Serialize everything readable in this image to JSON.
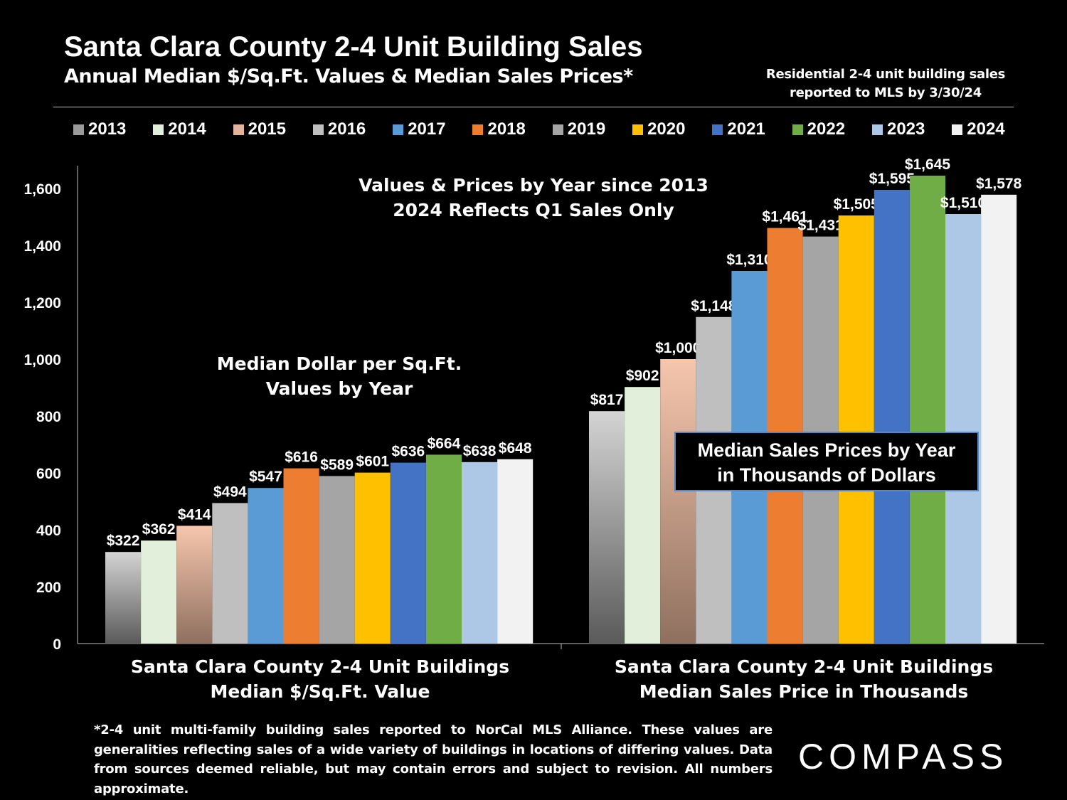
{
  "header": {
    "title": "Santa Clara County 2-4 Unit Building Sales",
    "subtitle": "Annual Median $/Sq.Ft. Values & Median Sales Prices*",
    "note_line1": "Residential 2-4 unit building sales",
    "note_line2": "reported to MLS by 3/30/24"
  },
  "colors": {
    "2013": "#9a9a9a",
    "2014": "#e2efda",
    "2015": "#e3b49a",
    "2016": "#bfbfbf",
    "2017": "#5b9bd5",
    "2018": "#ed7d31",
    "2019": "#a5a5a5",
    "2020": "#ffc000",
    "2021": "#4472c4",
    "2022": "#70ad47",
    "2023": "#adc8e6",
    "2024": "#f2f2f2"
  },
  "legend": [
    "2013",
    "2014",
    "2015",
    "2016",
    "2017",
    "2018",
    "2019",
    "2020",
    "2021",
    "2022",
    "2023",
    "2024"
  ],
  "chart_data": {
    "type": "bar",
    "categories": [
      "Santa Clara County 2-4 Unit Buildings Median $/Sq.Ft. Value",
      "Santa Clara County 2-4 Unit Buildings Median Sales Price in Thousands"
    ],
    "series": [
      {
        "name": "2013",
        "values": [
          322,
          817
        ],
        "labels": [
          "$322",
          "$817"
        ]
      },
      {
        "name": "2014",
        "values": [
          362,
          902
        ],
        "labels": [
          "$362",
          "$902"
        ]
      },
      {
        "name": "2015",
        "values": [
          414,
          1000
        ],
        "labels": [
          "$414",
          "$1,000"
        ]
      },
      {
        "name": "2016",
        "values": [
          494,
          1148
        ],
        "labels": [
          "$494",
          "$1,148"
        ]
      },
      {
        "name": "2017",
        "values": [
          547,
          1310
        ],
        "labels": [
          "$547",
          "$1,310"
        ]
      },
      {
        "name": "2018",
        "values": [
          616,
          1461
        ],
        "labels": [
          "$616",
          "$1,461"
        ]
      },
      {
        "name": "2019",
        "values": [
          589,
          1431
        ],
        "labels": [
          "$589",
          "$1,431"
        ]
      },
      {
        "name": "2020",
        "values": [
          601,
          1505
        ],
        "labels": [
          "$601",
          "$1,505"
        ]
      },
      {
        "name": "2021",
        "values": [
          636,
          1595
        ],
        "labels": [
          "$636",
          "$1,595"
        ]
      },
      {
        "name": "2022",
        "values": [
          664,
          1645
        ],
        "labels": [
          "$664",
          "$1,645"
        ]
      },
      {
        "name": "2023",
        "values": [
          638,
          1510
        ],
        "labels": [
          "$638",
          "$1,510"
        ]
      },
      {
        "name": "2024",
        "values": [
          648,
          1578
        ],
        "labels": [
          "$648",
          "$1,578"
        ]
      }
    ],
    "yticks": [
      "0",
      "200",
      "400",
      "600",
      "800",
      "1,000",
      "1,200",
      "1,400",
      "1,600"
    ],
    "ylim": [
      0,
      1680
    ],
    "title": "Santa Clara County 2-4 Unit Building Sales",
    "xlabel": "",
    "ylabel": "",
    "legend_position": "top"
  },
  "annotations": {
    "top_line1": "Values & Prices by Year since 2013",
    "top_line2": "2024 Reflects Q1 Sales Only",
    "left_line1": "Median Dollar per Sq.Ft.",
    "left_line2": "Values by Year",
    "box_line1": "Median Sales Prices by Year",
    "box_line2": "in Thousands of Dollars"
  },
  "xaxis": {
    "group1_line1": "Santa Clara County 2-4 Unit Buildings",
    "group1_line2": "Median $/Sq.Ft. Value",
    "group2_line1": "Santa Clara County 2-4 Unit Buildings",
    "group2_line2": "Median Sales Price in Thousands"
  },
  "footnote": "*2-4 unit multi-family building sales reported to NorCal MLS Alliance. These values are generalities reflecting sales of a wide variety of buildings in locations of differing values. Data from sources deemed reliable, but may contain errors and subject to revision. All numbers  approximate.",
  "logo": "COMPASS"
}
